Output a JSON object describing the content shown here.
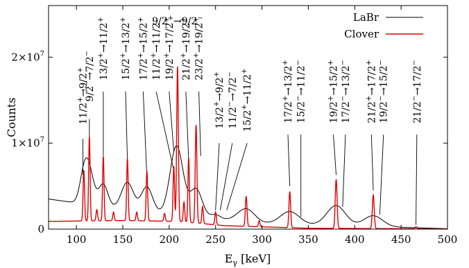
{
  "chart_data": {
    "type": "line",
    "xlabel": "E",
    "xlabel_sub": "γ",
    "xlabel_unit": " [keV]",
    "ylabel": "Counts",
    "xlim": [
      70,
      500
    ],
    "ylim": [
      0,
      26000000
    ],
    "x_ticks": [
      100,
      150,
      200,
      250,
      300,
      350,
      400,
      450,
      500
    ],
    "x_tick_labels": [
      "100",
      "150",
      "200",
      "250",
      "300",
      "350",
      "400",
      "450",
      "500"
    ],
    "y_ticks": [
      0,
      10000000,
      20000000
    ],
    "y_tick_labels": [
      {
        "mant": "0",
        "exp": ""
      },
      {
        "mant": "1×10",
        "exp": "7"
      },
      {
        "mant": "2×10",
        "exp": "7"
      }
    ],
    "legend": {
      "position": "top-right",
      "entries": [
        "LaBr",
        "Clover"
      ]
    },
    "series": [
      {
        "name": "LaBr",
        "color": "#000000",
        "baseline": [
          [
            70,
            3500000
          ],
          [
            150,
            2300000
          ],
          [
            300,
            700000
          ],
          [
            500,
            50000
          ]
        ],
        "peaks": [
          {
            "center": 108,
            "height": 3000000,
            "sigma": 4.5
          },
          {
            "center": 114,
            "height": 3600000,
            "sigma": 5
          },
          {
            "center": 129,
            "height": 2600000,
            "sigma": 5
          },
          {
            "center": 155,
            "height": 3200000,
            "sigma": 6.5
          },
          {
            "center": 176,
            "height": 2900000,
            "sigma": 6
          },
          {
            "center": 208,
            "height": 8000000,
            "sigma": 7
          },
          {
            "center": 229,
            "height": 3200000,
            "sigma": 6.5
          },
          {
            "center": 250,
            "height": 450000,
            "sigma": 5
          },
          {
            "center": 283,
            "height": 1500000,
            "sigma": 9
          },
          {
            "center": 330,
            "height": 1450000,
            "sigma": 10
          },
          {
            "center": 380,
            "height": 2300000,
            "sigma": 10
          },
          {
            "center": 420,
            "height": 1250000,
            "sigma": 10
          }
        ]
      },
      {
        "name": "Clover",
        "color": "#dd0000",
        "baseline": [
          [
            70,
            900000
          ],
          [
            150,
            1000000
          ],
          [
            210,
            900000
          ],
          [
            260,
            400000
          ],
          [
            350,
            100000
          ],
          [
            500,
            20000
          ]
        ],
        "peaks": [
          {
            "center": 108,
            "height": 5900000,
            "sigma": 0.8
          },
          {
            "center": 114,
            "height": 9800000,
            "sigma": 0.8
          },
          {
            "center": 122,
            "height": 1300000,
            "sigma": 0.8
          },
          {
            "center": 129,
            "height": 7500000,
            "sigma": 0.8
          },
          {
            "center": 140,
            "height": 1000000,
            "sigma": 0.8
          },
          {
            "center": 155,
            "height": 7200000,
            "sigma": 0.8
          },
          {
            "center": 165,
            "height": 1000000,
            "sigma": 0.8
          },
          {
            "center": 176,
            "height": 5800000,
            "sigma": 0.8
          },
          {
            "center": 195,
            "height": 900000,
            "sigma": 0.8
          },
          {
            "center": 205,
            "height": 6400000,
            "sigma": 0.8
          },
          {
            "center": 209,
            "height": 18000000,
            "sigma": 0.9
          },
          {
            "center": 216,
            "height": 2300000,
            "sigma": 0.8
          },
          {
            "center": 221,
            "height": 7500000,
            "sigma": 0.8
          },
          {
            "center": 229,
            "height": 11400000,
            "sigma": 0.9
          },
          {
            "center": 236,
            "height": 2000000,
            "sigma": 0.8
          },
          {
            "center": 250,
            "height": 1500000,
            "sigma": 0.8
          },
          {
            "center": 283,
            "height": 3500000,
            "sigma": 0.9
          },
          {
            "center": 297,
            "height": 700000,
            "sigma": 0.8
          },
          {
            "center": 330,
            "height": 4200000,
            "sigma": 0.9
          },
          {
            "center": 380,
            "height": 5700000,
            "sigma": 1.0
          },
          {
            "center": 420,
            "height": 3900000,
            "sigma": 1.0
          },
          {
            "center": 466,
            "height": 250000,
            "sigma": 1.0
          }
        ]
      }
    ],
    "annotations": [
      {
        "from": "11/2",
        "fp": "+",
        "to": "9/2",
        "tp": "+",
        "x": 107,
        "y": 15500000,
        "lx": 107,
        "ly": 6300000
      },
      {
        "from": "9/2",
        "fp": "−",
        "to": "7/2",
        "tp": "−",
        "x": 114,
        "y": 17800000,
        "lx": 114,
        "ly": 10500000
      },
      {
        "from": "13/2",
        "fp": "+",
        "to": "11/2",
        "tp": "+",
        "x": 129,
        "y": 21000000,
        "lx": 129,
        "ly": 8500000
      },
      {
        "from": "15/2",
        "fp": "+",
        "to": "13/2",
        "tp": "+",
        "x": 153,
        "y": 21000000,
        "lx": 155,
        "ly": 8000000
      },
      {
        "from": "17/2",
        "fp": "+",
        "to": "15/2",
        "tp": "+",
        "x": 172,
        "y": 21000000,
        "lx": 176,
        "ly": 6000000
      },
      {
        "from": "11/2",
        "fp": "+",
        "to": "11/2",
        "tp": "−",
        "x": 186,
        "y": 21000000,
        "lx": 205,
        "ly": 6800000
      },
      {
        "from": "19/2",
        "fp": "+",
        "to": "17/2",
        "tp": "+",
        "x": 200,
        "y": 21000000,
        "lx": 205,
        "ly": 9000000
      },
      {
        "from": "21/2",
        "fp": "+",
        "to": "19/2",
        "tp": "+",
        "x": 218,
        "y": 21000000,
        "lx": 221,
        "ly": 8000000
      },
      {
        "from": "23/2",
        "fp": "+",
        "to": "19/2",
        "tp": "+",
        "x": 232,
        "y": 21000000,
        "lx": 234,
        "ly": 8500000
      },
      {
        "from": "13/2",
        "fp": "+",
        "to": "9/2",
        "tp": "+",
        "x": 254,
        "y": 15000000,
        "lx": 250,
        "ly": 2200000
      },
      {
        "from": "11/2",
        "fp": "−",
        "to": "7/2",
        "tp": "−",
        "x": 268,
        "y": 15000000,
        "lx": 255,
        "ly": 2200000
      },
      {
        "from": "15/2",
        "fp": "+",
        "to": "11/2",
        "tp": "+",
        "x": 284,
        "y": 15000000,
        "lx": 262,
        "ly": 2200000
      },
      {
        "from": "17/2",
        "fp": "+",
        "to": "13/2",
        "tp": "+",
        "x": 328,
        "y": 16000000,
        "lx": 330,
        "ly": 5000000
      },
      {
        "from": "15/2",
        "fp": "−",
        "to": "11/2",
        "tp": "−",
        "x": 342,
        "y": 16000000,
        "lx": 342,
        "ly": 1400000
      },
      {
        "from": "19/2",
        "fp": "+",
        "to": "15/2",
        "tp": "+",
        "x": 377,
        "y": 16000000,
        "lx": 380,
        "ly": 6300000
      },
      {
        "from": "17/2",
        "fp": "−",
        "to": "13/2",
        "tp": "−",
        "x": 390,
        "y": 16000000,
        "lx": 387,
        "ly": 2600000
      },
      {
        "from": "21/2",
        "fp": "+",
        "to": "17/2",
        "tp": "+",
        "x": 418,
        "y": 16000000,
        "lx": 420,
        "ly": 4500000
      },
      {
        "from": "19/2",
        "fp": "−",
        "to": "15/2",
        "tp": "−",
        "x": 431,
        "y": 16000000,
        "lx": 427,
        "ly": 1700000
      },
      {
        "from": "21/2",
        "fp": "−",
        "to": "17/2",
        "tp": "−",
        "x": 467,
        "y": 16000000,
        "lx": 466,
        "ly": 500000
      },
      {
        "from": "9/2",
        "fp": "+",
        "to": "9/2",
        "tp": "−",
        "x": 209,
        "y": 23500000,
        "lx": 209,
        "ly": 22800000,
        "horizontal": true
      }
    ]
  }
}
